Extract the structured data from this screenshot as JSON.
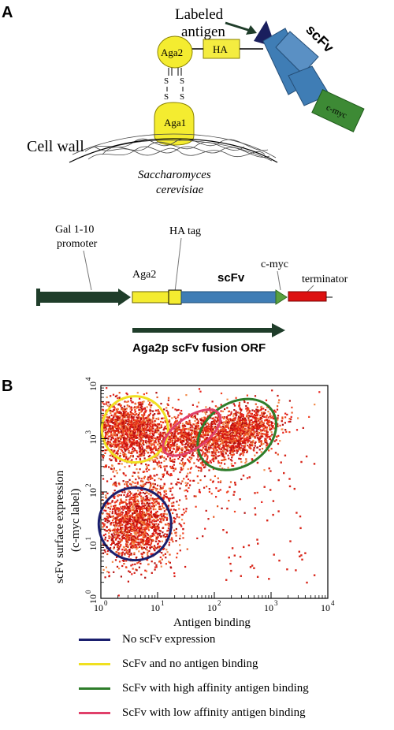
{
  "panel_a": {
    "letter": "A",
    "labeled_antigen": [
      "Labeled",
      "antigen"
    ],
    "scfv_label": "scFv",
    "cmyc_box": "c-myc",
    "aga2": "Aga2",
    "ha": "HA",
    "aga1": "Aga1",
    "ss_left": [
      "S",
      "S"
    ],
    "ss_right": [
      "S",
      "S"
    ],
    "cell_wall": "Cell wall",
    "organism": [
      "Saccharomyces",
      "cerevisiae"
    ],
    "gal_promoter": [
      "Gal 1-10",
      "promoter"
    ],
    "ha_tag": "HA tag",
    "aga2_construct": "Aga2",
    "scfv_construct": "scFv",
    "cmyc_construct": "c-myc",
    "terminator": "terminator",
    "orf": "Aga2p scFv fusion ORF"
  },
  "panel_b": {
    "letter": "B",
    "x_label": "Antigen binding",
    "y_label_line1": "scFv surface expression",
    "y_label_line2": "(c-myc label)",
    "x_ticks": [
      "10",
      "10",
      "10",
      "10",
      "10"
    ],
    "x_exps": [
      "0",
      "1",
      "2",
      "3",
      "4"
    ],
    "y_ticks": [
      "10",
      "10",
      "10",
      "10",
      "10"
    ],
    "y_exps": [
      "0",
      "1",
      "2",
      "3",
      "4"
    ]
  },
  "chart_data": {
    "type": "scatter",
    "xlabel": "Antigen binding",
    "ylabel": "scFv surface expression (c-myc label)",
    "xscale": "log",
    "yscale": "log",
    "xlim": [
      1,
      10000
    ],
    "ylim": [
      1,
      10000
    ],
    "series": [
      {
        "name": "No scFv expression",
        "color": "#1a1f6e",
        "center": [
          4,
          25
        ]
      },
      {
        "name": "ScFv and no antigen binding",
        "color": "#f0e020",
        "center": [
          4,
          1500
        ]
      },
      {
        "name": "ScFv with  high affinity antigen binding",
        "color": "#2e7d2a",
        "center": [
          250,
          1200
        ]
      },
      {
        "name": "ScFv with low affinity antigen binding",
        "color": "#e0406a",
        "center": [
          40,
          1300
        ]
      }
    ]
  },
  "legend": [
    {
      "color": "#1a1f6e",
      "label": "No scFv expression"
    },
    {
      "color": "#f0e020",
      "label": "ScFv and no antigen binding"
    },
    {
      "color": "#2e7d2a",
      "label": "ScFv with  high affinity antigen binding"
    },
    {
      "color": "#e0406a",
      "label": "ScFv with low affinity antigen binding"
    }
  ]
}
